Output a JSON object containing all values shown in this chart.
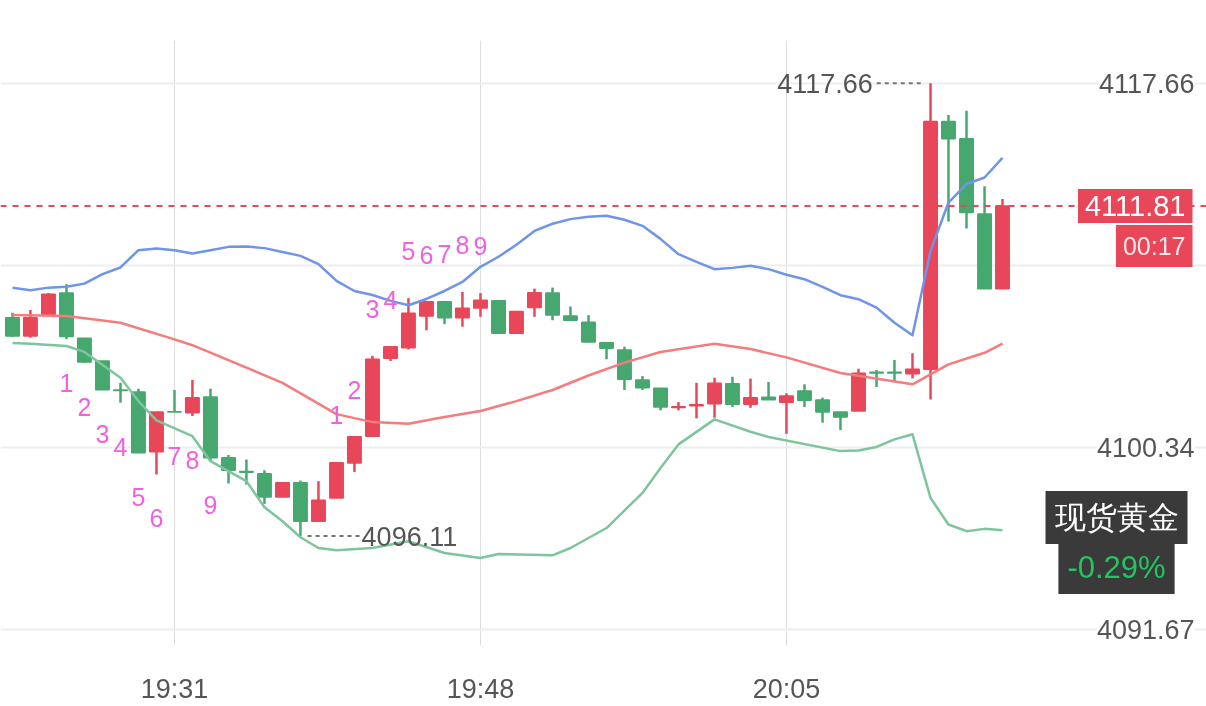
{
  "chart_data": {
    "type": "candlestick",
    "x": [
      19.3667,
      19.3833,
      19.4,
      19.4167,
      19.4333,
      19.45,
      19.4667,
      19.4833,
      19.5,
      19.5167,
      19.5333,
      19.55,
      19.5667,
      19.5833,
      19.6,
      19.6167,
      19.6333,
      19.65,
      19.6667,
      19.6833,
      19.7,
      19.7167,
      19.7333,
      19.75,
      19.7667,
      19.7833,
      19.8,
      19.8167,
      19.8333,
      19.85,
      19.8667,
      19.8833,
      19.9,
      19.9167,
      19.9333,
      19.95,
      19.9667,
      19.9833,
      20.0,
      20.0167,
      20.0333,
      20.05,
      20.0667,
      20.0833,
      20.1,
      20.1167,
      20.1333,
      20.15,
      20.1667,
      20.1833,
      20.2,
      20.2167,
      20.2333,
      20.25,
      20.2667,
      20.2833
    ],
    "ohlc": [
      [
        4106.5,
        4106.73,
        4105.58,
        4105.63
      ],
      [
        4105.63,
        4106.86,
        4105.55,
        4106.5
      ],
      [
        4106.66,
        4107.67,
        4106.66,
        4107.62
      ],
      [
        4107.67,
        4108.09,
        4105.47,
        4105.6
      ],
      [
        4105.52,
        4105.52,
        4104.36,
        4104.39
      ],
      [
        4104.44,
        4104.44,
        4103.07,
        4103.07
      ],
      [
        4103.06,
        4103.4,
        4102.45,
        4103.04
      ],
      [
        4102.96,
        4103.12,
        4100.07,
        4100.07
      ],
      [
        4100.12,
        4102.01,
        4099.04,
        4102.01
      ],
      [
        4102.02,
        4103.06,
        4102.01,
        4102.01
      ],
      [
        4101.97,
        4103.53,
        4101.82,
        4102.69
      ],
      [
        4102.72,
        4103.12,
        4099.67,
        4099.83
      ],
      [
        4099.83,
        4099.96,
        4098.61,
        4099.24
      ],
      [
        4099.18,
        4099.75,
        4098.56,
        4099.15
      ],
      [
        4099.07,
        4099.24,
        4097.64,
        4097.97
      ],
      [
        4097.97,
        4098.64,
        4097.97,
        4098.64
      ],
      [
        4098.64,
        4098.75,
        4096.11,
        4096.81
      ],
      [
        4096.81,
        4098.72,
        4096.78,
        4097.81
      ],
      [
        4097.92,
        4099.62,
        4097.92,
        4099.6
      ],
      [
        4099.59,
        4100.83,
        4099.16,
        4100.83
      ],
      [
        4100.86,
        4104.68,
        4100.86,
        4104.52
      ],
      [
        4104.57,
        4105.12,
        4104.44,
        4105.12
      ],
      [
        4105.07,
        4107.43,
        4104.99,
        4106.71
      ],
      [
        4106.58,
        4107.26,
        4105.9,
        4107.26
      ],
      [
        4107.26,
        4107.3,
        4106.19,
        4106.5
      ],
      [
        4106.5,
        4107.73,
        4106.07,
        4106.95
      ],
      [
        4106.96,
        4107.67,
        4106.54,
        4107.33
      ],
      [
        4107.3,
        4107.3,
        4105.76,
        4105.76
      ],
      [
        4105.76,
        4106.79,
        4105.76,
        4106.79
      ],
      [
        4106.98,
        4107.88,
        4106.54,
        4107.69
      ],
      [
        4107.67,
        4107.93,
        4106.38,
        4106.63
      ],
      [
        4106.58,
        4107.03,
        4106.38,
        4106.38
      ],
      [
        4106.28,
        4106.62,
        4105.34,
        4105.34
      ],
      [
        4105.31,
        4105.31,
        4104.52,
        4105.04
      ],
      [
        4104.96,
        4105.12,
        4103.06,
        4103.57
      ],
      [
        4103.53,
        4103.72,
        4103.06,
        4103.17
      ],
      [
        4103.14,
        4103.14,
        4102.09,
        4102.25
      ],
      [
        4102.22,
        4102.48,
        4102.09,
        4102.26
      ],
      [
        4102.31,
        4103.4,
        4101.71,
        4102.36
      ],
      [
        4102.4,
        4103.64,
        4101.74,
        4103.38
      ],
      [
        4103.36,
        4103.69,
        4102.25,
        4102.38
      ],
      [
        4102.38,
        4103.6,
        4102.21,
        4102.69
      ],
      [
        4102.71,
        4103.44,
        4102.59,
        4102.59
      ],
      [
        4102.48,
        4102.9,
        4100.97,
        4102.77
      ],
      [
        4103.01,
        4103.33,
        4102.25,
        4102.57
      ],
      [
        4102.58,
        4102.69,
        4101.5,
        4102.01
      ],
      [
        4102.01,
        4102.01,
        4101.15,
        4101.77
      ],
      [
        4102.06,
        4104.07,
        4102.06,
        4103.85
      ],
      [
        4103.9,
        4104.01,
        4103.2,
        4103.87
      ],
      [
        4103.9,
        4104.49,
        4103.49,
        4103.87
      ],
      [
        4103.83,
        4104.81,
        4103.61,
        4104.04
      ],
      [
        4104.04,
        4117.66,
        4102.61,
        4115.83
      ],
      [
        4115.83,
        4116.15,
        4111.08,
        4115.01
      ],
      [
        4115.01,
        4116.35,
        4110.74,
        4111.51
      ],
      [
        4111.43,
        4112.75,
        4107.88,
        4107.88
      ],
      [
        4107.88,
        4112.15,
        4107.88,
        4111.81
      ]
    ],
    "colors": [
      "#46a86e",
      "#e8475a",
      "#e8475a",
      "#46a86e",
      "#46a86e",
      "#46a86e",
      "#46a86e",
      "#46a86e",
      "#e8475a",
      "#46a86e",
      "#e8475a",
      "#46a86e",
      "#46a86e",
      "#46a86e",
      "#46a86e",
      "#e8475a",
      "#46a86e",
      "#e8475a",
      "#e8475a",
      "#e8475a",
      "#e8475a",
      "#e8475a",
      "#e8475a",
      "#e8475a",
      "#46a86e",
      "#e8475a",
      "#e8475a",
      "#46a86e",
      "#e8475a",
      "#e8475a",
      "#46a86e",
      "#46a86e",
      "#46a86e",
      "#46a86e",
      "#46a86e",
      "#46a86e",
      "#46a86e",
      "#e8475a",
      "#e8475a",
      "#e8475a",
      "#46a86e",
      "#e8475a",
      "#46a86e",
      "#e8475a",
      "#46a86e",
      "#46a86e",
      "#46a86e",
      "#e8475a",
      "#46a86e",
      "#46a86e",
      "#e8475a",
      "#e8475a",
      "#46a86e",
      "#46a86e",
      "#46a86e",
      "#e8475a"
    ],
    "series": [
      {
        "type": "line",
        "color": "#6f94ea",
        "x": [
          19.3667,
          19.3833,
          19.4,
          19.4167,
          19.4333,
          19.45,
          19.4667,
          19.4833,
          19.5,
          19.5167,
          19.5333,
          19.55,
          19.5667,
          19.5833,
          19.6,
          19.6167,
          19.6333,
          19.65,
          19.6667,
          19.6833,
          19.7,
          19.7167,
          19.7333,
          19.75,
          19.7667,
          19.7833,
          19.8,
          19.8167,
          19.8333,
          19.85,
          19.8667,
          19.8833,
          19.9,
          19.9167,
          19.9333,
          19.95,
          19.9667,
          19.9833,
          20.0,
          20.0167,
          20.0333,
          20.05,
          20.0667,
          20.0833,
          20.1,
          20.1167,
          20.1333,
          20.15,
          20.1667,
          20.1833,
          20.2,
          20.2167,
          20.2333,
          20.25,
          20.2667,
          20.2833
        ],
        "values": [
          4107.92,
          4107.81,
          4107.93,
          4107.97,
          4108.12,
          4108.57,
          4108.89,
          4109.71,
          4109.79,
          4109.71,
          4109.55,
          4109.71,
          4109.87,
          4109.89,
          4109.81,
          4109.63,
          4109.44,
          4109.05,
          4108.25,
          4107.77,
          4107.58,
          4107.3,
          4107.09,
          4107.39,
          4107.77,
          4108.2,
          4108.92,
          4109.4,
          4109.97,
          4110.63,
          4110.97,
          4111.19,
          4111.3,
          4111.35,
          4111.16,
          4110.87,
          4110.25,
          4109.52,
          4109.16,
          4108.81,
          4108.87,
          4108.97,
          4108.81,
          4108.54,
          4108.33,
          4107.97,
          4107.57,
          4107.38,
          4106.98,
          4106.26,
          4105.66,
          4109.68,
          4111.98,
          4112.86,
          4113.17,
          4114.1
        ]
      },
      {
        "type": "line",
        "color": "#f47c7c",
        "x": [
          19.3667,
          19.4167,
          19.4667,
          19.5167,
          19.5333,
          19.5833,
          19.6167,
          19.6667,
          19.7,
          19.7333,
          19.7667,
          19.8,
          19.8333,
          19.8667,
          19.9,
          19.9333,
          19.9667,
          20.0167,
          20.05,
          20.0833,
          20.1333,
          20.2,
          20.2333,
          20.2667,
          20.2833
        ],
        "values": [
          4106.63,
          4106.58,
          4106.26,
          4105.47,
          4105.19,
          4104.12,
          4103.4,
          4101.91,
          4101.53,
          4101.45,
          4101.77,
          4102.06,
          4102.53,
          4103.06,
          4103.75,
          4104.36,
          4104.87,
          4105.26,
          4105.01,
          4104.61,
          4103.87,
          4103.33,
          4104.28,
          4104.83,
          4105.26
        ]
      },
      {
        "type": "line",
        "color": "#7dc59c",
        "x": [
          19.3667,
          19.3833,
          19.4167,
          19.4333,
          19.4667,
          19.4833,
          19.5,
          19.5333,
          19.55,
          19.5833,
          19.6,
          19.6167,
          19.6333,
          19.65,
          19.6667,
          19.7,
          19.7333,
          19.7667,
          19.8,
          19.8167,
          19.8667,
          19.8833,
          19.9167,
          19.95,
          19.9667,
          19.9833,
          20.0167,
          20.05,
          20.0667,
          20.1333,
          20.15,
          20.1667,
          20.1833,
          20.2,
          20.2167,
          20.2333,
          20.25,
          20.2667,
          20.2833
        ],
        "values": [
          4105.3,
          4105.26,
          4105.15,
          4104.87,
          4103.64,
          4102.53,
          4101.61,
          4100.86,
          4099.67,
          4098.72,
          4097.48,
          4096.81,
          4096.05,
          4095.54,
          4095.43,
          4095.54,
          4095.86,
          4095.3,
          4095.06,
          4095.25,
          4095.19,
          4095.54,
          4096.49,
          4098.16,
          4099.35,
          4100.47,
          4101.66,
          4101.07,
          4100.82,
          4100.15,
          4100.18,
          4100.35,
          4100.71,
          4100.95,
          4097.92,
          4096.66,
          4096.34,
          4096.45,
          4096.39
        ]
      }
    ],
    "xlim": [
      19.3556,
      20.4722
    ],
    "ylim": [
      4090.9,
      4119.69
    ],
    "xticks": [
      {
        "value": 19.5167,
        "label": "19:31"
      },
      {
        "value": 19.8,
        "label": "19:48"
      },
      {
        "value": 20.0833,
        "label": "20:05"
      }
    ],
    "yticks": [
      4091.67,
      4100.34,
      {
        "value": 4109.0,
        "label": null
      },
      4117.66
    ],
    "grid": true,
    "ref_lines": [
      {
        "axis": "y",
        "value": 4111.81,
        "label": "4111.81",
        "color": "#e8475a",
        "line_style": "dashed"
      }
    ],
    "annotations": [
      "00:17",
      "现货黄金",
      "-0.29%",
      {
        "text": "4117.66",
        "x": 20.2167,
        "y": 4117.66
      },
      {
        "text": "4096.11",
        "x": 19.6333,
        "y": 4096.11
      },
      {
        "text": "1",
        "x": 19.4167,
        "y": 4105.47
      },
      {
        "text": "2",
        "x": 19.4333,
        "y": 4104.36
      },
      {
        "text": "3",
        "x": 19.45,
        "y": 4103.07
      },
      {
        "text": "4",
        "x": 19.4667,
        "y": 4102.45
      },
      {
        "text": "5",
        "x": 19.4833,
        "y": 4100.07
      },
      {
        "text": "6",
        "x": 19.5,
        "y": 4099.04
      },
      {
        "text": "7",
        "x": 19.5167,
        "y": 4102.01
      },
      {
        "text": "8",
        "x": 19.5333,
        "y": 4101.82
      },
      {
        "text": "9",
        "x": 19.55,
        "y": 4099.67
      },
      {
        "text": "1",
        "x": 19.6667,
        "y": 4099.62
      },
      {
        "text": "2",
        "x": 19.6833,
        "y": 4100.83
      },
      {
        "text": "3",
        "x": 19.7,
        "y": 4104.68
      },
      {
        "text": "4",
        "x": 19.7167,
        "y": 4105.12
      },
      {
        "text": "5",
        "x": 19.7333,
        "y": 4107.43
      },
      {
        "text": "6",
        "x": 19.75,
        "y": 4107.26
      },
      {
        "text": "7",
        "x": 19.7667,
        "y": 4107.3
      },
      {
        "text": "8",
        "x": 19.7833,
        "y": 4107.73
      },
      {
        "text": "9",
        "x": 19.8,
        "y": 4107.67
      }
    ]
  }
}
